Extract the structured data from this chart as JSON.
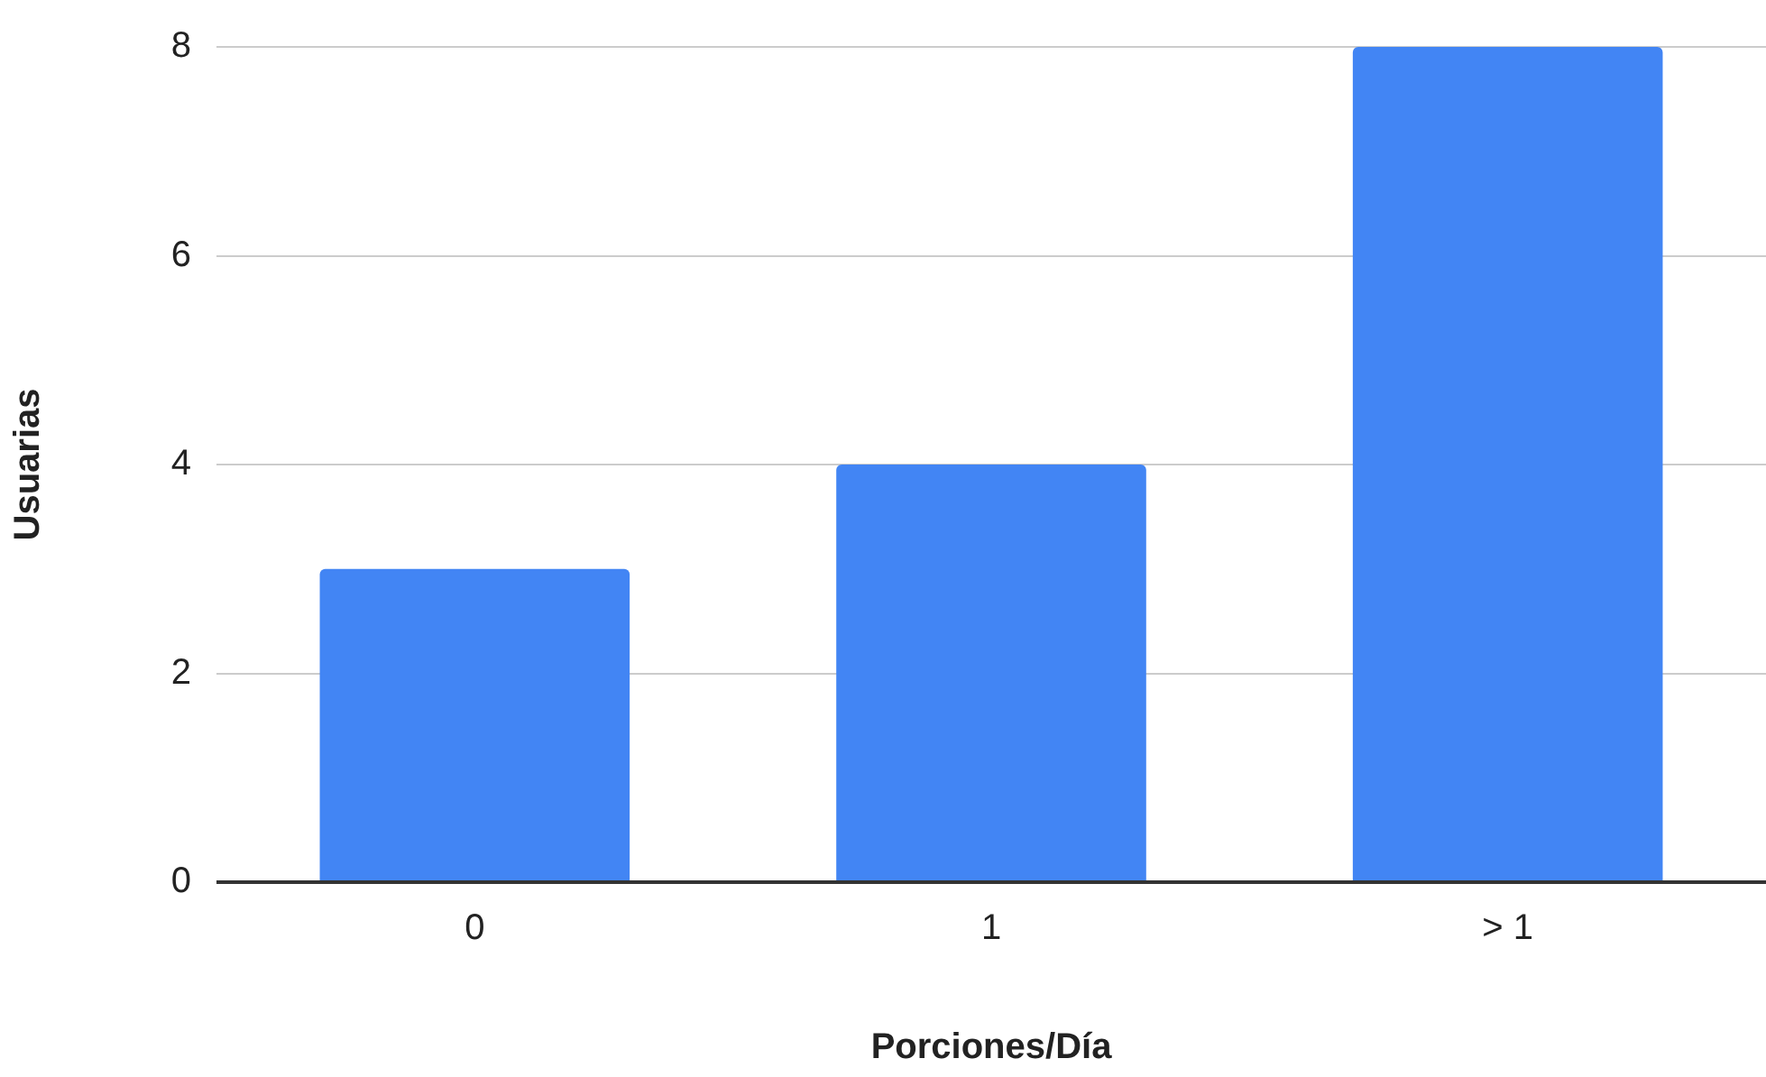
{
  "chart_data": {
    "type": "bar",
    "xlabel": "Porciones/Día",
    "ylabel": "Usuarias",
    "categories": [
      "0",
      "1",
      "> 1"
    ],
    "values": [
      3,
      4,
      8
    ],
    "color": "#4285f4",
    "ylim": [
      0,
      8
    ],
    "yticks": [
      0,
      2,
      4,
      6,
      8
    ],
    "grid": "y",
    "legend": false
  }
}
